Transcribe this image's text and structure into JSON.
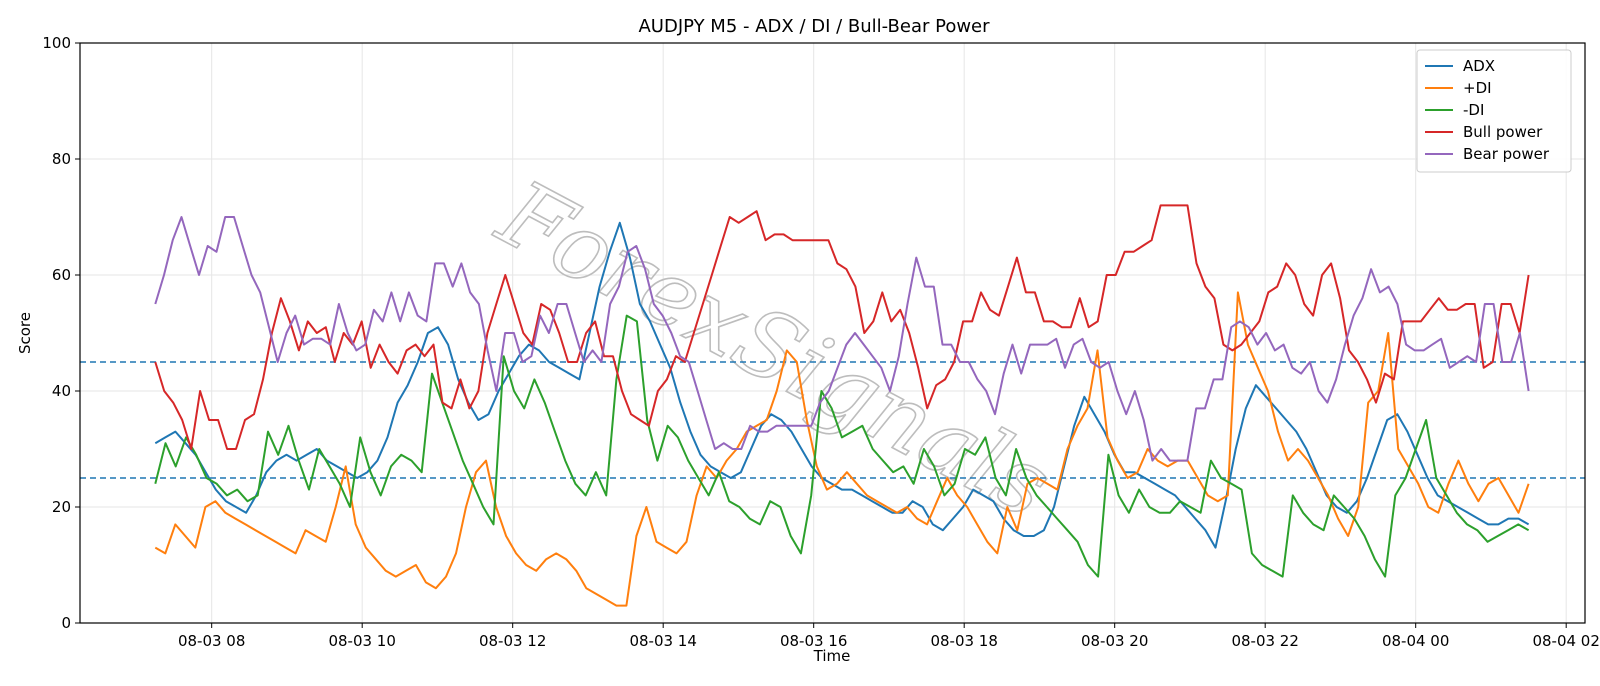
{
  "chart_data": {
    "type": "line",
    "title": "AUDJPY M5 - ADX / DI / Bull-Bear Power",
    "xlabel": "Time",
    "ylabel": "Score",
    "ylim": [
      0,
      100
    ],
    "xlim": [
      "2024-08-03 06:15",
      "2024-08-04 02:15"
    ],
    "x_start": "2024-08-03 07:15",
    "x_end": "2024-08-04 01:30",
    "x_tick_labels": [
      "08-03 08",
      "08-03 10",
      "08-03 12",
      "08-03 14",
      "08-03 16",
      "08-03 18",
      "08-03 20",
      "08-03 22",
      "08-04 00",
      "08-04 02"
    ],
    "y_tick_labels": [
      "0",
      "20",
      "40",
      "60",
      "80",
      "100"
    ],
    "grid": true,
    "legend_position": "top-right",
    "hlines": [
      {
        "y": 45,
        "style": "dashed",
        "color": "#1f77b4"
      },
      {
        "y": 25,
        "style": "dashed",
        "color": "#1f77b4"
      }
    ],
    "watermark": "ForexSignals",
    "series": [
      {
        "name": "ADX",
        "color": "#1f77b4",
        "values": [
          31,
          32,
          33,
          31,
          29,
          26,
          23,
          21,
          20,
          19,
          22,
          26,
          28,
          29,
          28,
          29,
          30,
          28,
          27,
          26,
          25,
          26,
          28,
          32,
          38,
          41,
          45,
          50,
          51,
          48,
          42,
          38,
          35,
          36,
          40,
          43,
          46,
          48,
          47,
          45,
          44,
          43,
          42,
          50,
          58,
          64,
          69,
          63,
          55,
          52,
          48,
          44,
          38,
          33,
          29,
          27,
          26,
          25,
          26,
          30,
          34,
          36,
          35,
          33,
          30,
          27,
          25,
          24,
          23,
          23,
          22,
          21,
          20,
          19,
          19,
          21,
          20,
          17,
          16,
          18,
          20,
          23,
          22,
          21,
          18,
          16,
          15,
          15,
          16,
          20,
          27,
          34,
          39,
          36,
          33,
          29,
          26,
          26,
          25,
          24,
          23,
          22,
          20,
          18,
          16,
          13,
          21,
          30,
          37,
          41,
          39,
          37,
          35,
          33,
          30,
          26,
          22,
          20,
          19,
          21,
          25,
          30,
          35,
          36,
          33,
          29,
          25,
          22,
          21,
          20,
          19,
          18,
          17,
          17,
          18,
          18,
          17
        ]
      },
      {
        "name": "+DI",
        "color": "#ff7f0e",
        "values": [
          13,
          12,
          17,
          15,
          13,
          20,
          21,
          19,
          18,
          17,
          16,
          15,
          14,
          13,
          12,
          16,
          15,
          14,
          20,
          27,
          17,
          13,
          11,
          9,
          8,
          9,
          10,
          7,
          6,
          8,
          12,
          20,
          26,
          28,
          20,
          15,
          12,
          10,
          9,
          11,
          12,
          11,
          9,
          6,
          5,
          4,
          3,
          3,
          15,
          20,
          14,
          13,
          12,
          14,
          22,
          27,
          25,
          28,
          30,
          33,
          34,
          35,
          40,
          47,
          45,
          35,
          27,
          23,
          24,
          26,
          24,
          22,
          21,
          20,
          19,
          20,
          18,
          17,
          21,
          25,
          22,
          20,
          17,
          14,
          12,
          20,
          16,
          24,
          25,
          24,
          23,
          30,
          34,
          37,
          47,
          32,
          28,
          25,
          26,
          30,
          28,
          27,
          28,
          28,
          25,
          22,
          21,
          22,
          57,
          48,
          44,
          40,
          33,
          28,
          30,
          28,
          25,
          22,
          18,
          15,
          20,
          38,
          40,
          50,
          30,
          27,
          24,
          20,
          19,
          24,
          28,
          24,
          21,
          24,
          25,
          22,
          19,
          24
        ]
      },
      {
        "name": "-DI",
        "color": "#2ca02c",
        "values": [
          24,
          31,
          27,
          32,
          29,
          25,
          24,
          22,
          23,
          21,
          22,
          33,
          29,
          34,
          28,
          23,
          30,
          27,
          24,
          20,
          32,
          26,
          22,
          27,
          29,
          28,
          26,
          43,
          38,
          33,
          28,
          24,
          20,
          17,
          46,
          40,
          37,
          42,
          38,
          33,
          28,
          24,
          22,
          26,
          22,
          42,
          53,
          52,
          35,
          28,
          34,
          32,
          28,
          25,
          22,
          26,
          21,
          20,
          18,
          17,
          21,
          20,
          15,
          12,
          22,
          40,
          37,
          32,
          33,
          34,
          30,
          28,
          26,
          27,
          24,
          30,
          27,
          22,
          24,
          30,
          29,
          32,
          25,
          22,
          30,
          25,
          22,
          20,
          18,
          16,
          14,
          10,
          8,
          29,
          22,
          19,
          23,
          20,
          19,
          19,
          21,
          20,
          19,
          28,
          25,
          24,
          23,
          12,
          10,
          9,
          8,
          22,
          19,
          17,
          16,
          22,
          20,
          18,
          15,
          11,
          8,
          22,
          25,
          30,
          35,
          25,
          22,
          19,
          17,
          16,
          14,
          15,
          16,
          17,
          16
        ]
      },
      {
        "name": "Bull power",
        "color": "#d62728",
        "values": [
          45,
          40,
          38,
          35,
          30,
          40,
          35,
          35,
          30,
          30,
          35,
          36,
          42,
          50,
          56,
          52,
          47,
          52,
          50,
          51,
          45,
          50,
          48,
          52,
          44,
          48,
          45,
          43,
          47,
          48,
          46,
          48,
          38,
          37,
          42,
          37,
          40,
          50,
          55,
          60,
          55,
          50,
          48,
          55,
          54,
          50,
          45,
          45,
          50,
          52,
          46,
          46,
          40,
          36,
          35,
          34,
          40,
          42,
          46,
          45,
          50,
          55,
          60,
          65,
          70,
          69,
          70,
          71,
          66,
          67,
          67,
          66,
          66,
          66,
          66,
          66,
          62,
          61,
          58,
          50,
          52,
          57,
          52,
          54,
          50,
          44,
          37,
          41,
          42,
          45,
          52,
          52,
          57,
          54,
          53,
          58,
          63,
          57,
          57,
          52,
          52,
          51,
          51,
          56,
          51,
          52,
          60,
          60,
          64,
          64,
          65,
          66,
          72,
          72,
          72,
          72,
          62,
          58,
          56,
          48,
          47,
          48,
          50,
          52,
          57,
          58,
          62,
          60,
          55,
          53,
          60,
          62,
          56,
          47,
          45,
          42,
          38,
          43,
          42,
          52,
          52,
          52,
          54,
          56,
          54,
          54,
          55,
          55,
          44,
          45,
          55,
          55,
          50,
          60
        ]
      },
      {
        "name": "Bear power",
        "color": "#9467bd",
        "values": [
          55,
          60,
          66,
          70,
          65,
          60,
          65,
          64,
          70,
          70,
          65,
          60,
          57,
          51,
          45,
          50,
          53,
          48,
          49,
          49,
          48,
          55,
          50,
          47,
          48,
          54,
          52,
          57,
          52,
          57,
          53,
          52,
          62,
          62,
          58,
          62,
          57,
          55,
          47,
          40,
          50,
          50,
          45,
          46,
          53,
          50,
          55,
          55,
          50,
          45,
          47,
          45,
          55,
          58,
          64,
          65,
          61,
          55,
          53,
          50,
          46,
          45,
          40,
          35,
          30,
          31,
          30,
          30,
          34,
          33,
          33,
          34,
          34,
          34,
          34,
          34,
          38,
          40,
          44,
          48,
          50,
          48,
          46,
          44,
          40,
          46,
          55,
          63,
          58,
          58,
          48,
          48,
          45,
          45,
          42,
          40,
          36,
          43,
          48,
          43,
          48,
          48,
          48,
          49,
          44,
          48,
          49,
          45,
          44,
          45,
          40,
          36,
          40,
          35,
          28,
          30,
          28,
          28,
          28,
          37,
          37,
          42,
          42,
          51,
          52,
          51,
          48,
          50,
          47,
          48,
          44,
          43,
          45,
          40,
          38,
          42,
          48,
          53,
          56,
          61,
          57,
          58,
          55,
          48,
          47,
          47,
          48,
          49,
          44,
          45,
          46,
          45,
          55,
          55,
          45,
          45,
          50,
          40
        ]
      }
    ]
  }
}
